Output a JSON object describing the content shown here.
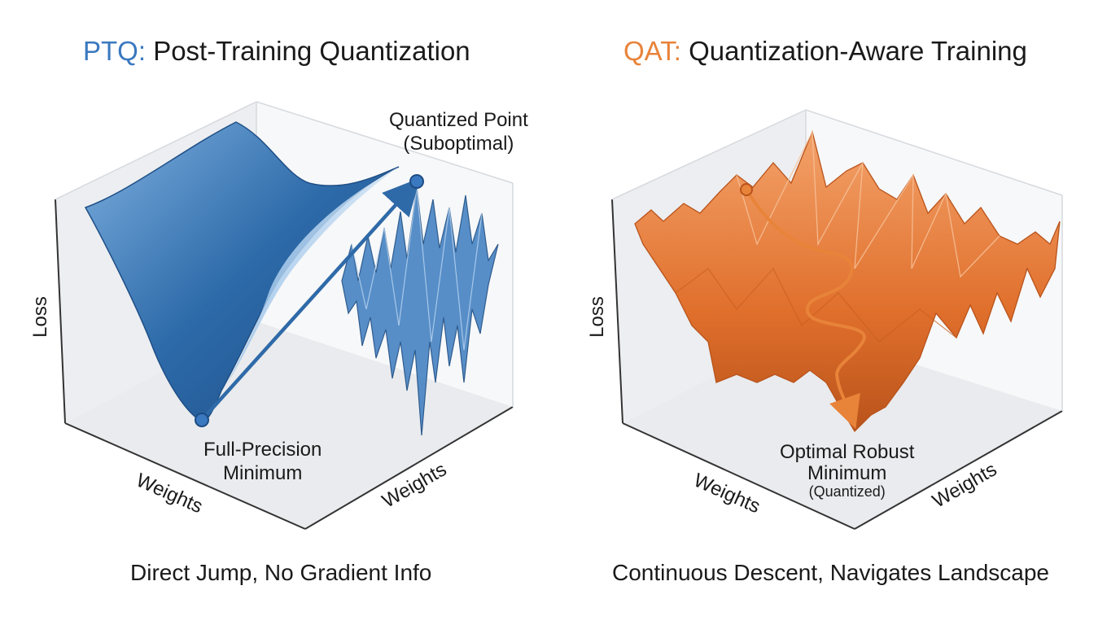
{
  "ptq": {
    "acronym": "PTQ:",
    "title": "Post-Training Quantization",
    "caption": "Direct Jump, No Gradient Info",
    "quantized_point_label_1": "Quantized Point",
    "quantized_point_label_2": "(Suboptimal)",
    "minimum_label_1": "Full-Precision",
    "minimum_label_2": "Minimum",
    "axis_loss": "Loss",
    "axis_weights_left": "Weights",
    "axis_weights_right": "Weights"
  },
  "qat": {
    "acronym": "QAT:",
    "title": "Quantization-Aware Training",
    "caption": "Continuous Descent, Navigates Landscape",
    "minimum_label_1": "Optimal Robust",
    "minimum_label_2": "Minimum",
    "minimum_label_3": "(Quantized)",
    "axis_loss": "Loss",
    "axis_weights_left": "Weights",
    "axis_weights_right": "Weights"
  },
  "colors": {
    "ptq_accent": "#3a78bf",
    "qat_accent": "#e8833a",
    "ptq_surface": "#2f6aa8",
    "qat_surface": "#e06f2c"
  }
}
